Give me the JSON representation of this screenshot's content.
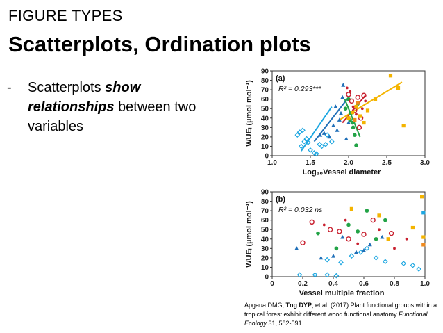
{
  "slide": {
    "kicker": "FIGURE TYPES",
    "title": "Scatterplots, Ordination plots",
    "bullet": {
      "dash": "-",
      "pre": "Scatterplots ",
      "em1": "show",
      "em2": "relationships",
      "post": " between two variables"
    },
    "caption": {
      "part1": "Apgaua DMG, ",
      "bold": "Tng DYP",
      "part2": ", et al. (2017) Plant functional groups within a tropical forest exhibit different wood functional anatomy ",
      "journal": "Functional Ecology",
      "part3": " 31, 582-591"
    }
  },
  "colors": {
    "cyan": "#1ea7e1",
    "blue": "#1f6fb8",
    "green": "#22a346",
    "red": "#c8202f",
    "yellow": "#f4b400",
    "orange": "#ef8a1f"
  },
  "chart_data": [
    {
      "type": "scatter",
      "panel_label": "(a)",
      "stat": "R² = 0.293***",
      "xlabel": "Log₁₀Vessel diameter",
      "ylabel": "WUEᵢ (µmol mol⁻¹)",
      "xlim": [
        1.0,
        3.0
      ],
      "ylim": [
        0,
        90
      ],
      "xticks": [
        "1.0",
        "1.5",
        "2.0",
        "2.5",
        "3.0"
      ],
      "yticks": [
        "0",
        "10",
        "20",
        "30",
        "40",
        "50",
        "60",
        "70",
        "80",
        "90"
      ],
      "points": [
        {
          "x": 1.33,
          "y": 22,
          "c": "cyan",
          "m": "diamond"
        },
        {
          "x": 1.36,
          "y": 25,
          "c": "cyan",
          "m": "diamond"
        },
        {
          "x": 1.4,
          "y": 27,
          "c": "cyan",
          "m": "diamond"
        },
        {
          "x": 1.38,
          "y": 10,
          "c": "cyan",
          "m": "diamond"
        },
        {
          "x": 1.42,
          "y": 15,
          "c": "cyan",
          "m": "diamond"
        },
        {
          "x": 1.45,
          "y": 18,
          "c": "cyan",
          "m": "diamond"
        },
        {
          "x": 1.47,
          "y": 14,
          "c": "cyan",
          "m": "diamond"
        },
        {
          "x": 1.5,
          "y": 6,
          "c": "cyan",
          "m": "diamond"
        },
        {
          "x": 1.55,
          "y": 3,
          "c": "cyan",
          "m": "diamond"
        },
        {
          "x": 1.58,
          "y": 2,
          "c": "cyan",
          "m": "diamond"
        },
        {
          "x": 1.62,
          "y": 12,
          "c": "cyan",
          "m": "diamond"
        },
        {
          "x": 1.65,
          "y": 10,
          "c": "cyan",
          "m": "diamond"
        },
        {
          "x": 1.7,
          "y": 12,
          "c": "cyan",
          "m": "diamond"
        },
        {
          "x": 1.72,
          "y": 22,
          "c": "cyan",
          "m": "diamond"
        },
        {
          "x": 1.78,
          "y": 15,
          "c": "cyan",
          "m": "diamond"
        },
        {
          "x": 1.63,
          "y": 22,
          "c": "blue",
          "m": "triangle"
        },
        {
          "x": 1.68,
          "y": 24,
          "c": "blue",
          "m": "triangle"
        },
        {
          "x": 1.75,
          "y": 20,
          "c": "blue",
          "m": "triangle"
        },
        {
          "x": 1.8,
          "y": 32,
          "c": "blue",
          "m": "triangle"
        },
        {
          "x": 1.85,
          "y": 27,
          "c": "blue",
          "m": "triangle"
        },
        {
          "x": 1.88,
          "y": 38,
          "c": "blue",
          "m": "triangle"
        },
        {
          "x": 1.83,
          "y": 52,
          "c": "blue",
          "m": "triangle"
        },
        {
          "x": 1.9,
          "y": 45,
          "c": "blue",
          "m": "triangle"
        },
        {
          "x": 1.92,
          "y": 62,
          "c": "blue",
          "m": "triangle"
        },
        {
          "x": 1.93,
          "y": 75,
          "c": "blue",
          "m": "triangle"
        },
        {
          "x": 1.97,
          "y": 18,
          "c": "blue",
          "m": "triangle"
        },
        {
          "x": 2.0,
          "y": 35,
          "c": "blue",
          "m": "triangle"
        },
        {
          "x": 1.96,
          "y": 50,
          "c": "green",
          "m": "circle"
        },
        {
          "x": 2.0,
          "y": 60,
          "c": "green",
          "m": "circle"
        },
        {
          "x": 2.03,
          "y": 45,
          "c": "green",
          "m": "circle"
        },
        {
          "x": 2.05,
          "y": 35,
          "c": "green",
          "m": "circle"
        },
        {
          "x": 2.08,
          "y": 22,
          "c": "green",
          "m": "circle"
        },
        {
          "x": 2.1,
          "y": 11,
          "c": "green",
          "m": "circle"
        },
        {
          "x": 2.02,
          "y": 38,
          "c": "green",
          "m": "circle"
        },
        {
          "x": 2.12,
          "y": 55,
          "c": "green",
          "m": "circle"
        },
        {
          "x": 2.06,
          "y": 30,
          "c": "green",
          "m": "circle"
        },
        {
          "x": 2.0,
          "y": 65,
          "c": "red",
          "m": "ring"
        },
        {
          "x": 2.04,
          "y": 58,
          "c": "red",
          "m": "ring"
        },
        {
          "x": 2.08,
          "y": 48,
          "c": "red",
          "m": "ring"
        },
        {
          "x": 2.12,
          "y": 62,
          "c": "red",
          "m": "ring"
        },
        {
          "x": 2.16,
          "y": 40,
          "c": "red",
          "m": "ring"
        },
        {
          "x": 2.2,
          "y": 64,
          "c": "red",
          "m": "ring"
        },
        {
          "x": 2.14,
          "y": 30,
          "c": "red",
          "m": "ring"
        },
        {
          "x": 1.98,
          "y": 72,
          "c": "red",
          "m": "dot"
        },
        {
          "x": 2.02,
          "y": 68,
          "c": "red",
          "m": "dot"
        },
        {
          "x": 2.06,
          "y": 52,
          "c": "red",
          "m": "dot"
        },
        {
          "x": 2.1,
          "y": 44,
          "c": "red",
          "m": "dot"
        },
        {
          "x": 2.18,
          "y": 50,
          "c": "red",
          "m": "dot"
        },
        {
          "x": 2.22,
          "y": 58,
          "c": "red",
          "m": "dot"
        },
        {
          "x": 2.0,
          "y": 40,
          "c": "yellow",
          "m": "square"
        },
        {
          "x": 2.05,
          "y": 46,
          "c": "yellow",
          "m": "square"
        },
        {
          "x": 2.1,
          "y": 52,
          "c": "yellow",
          "m": "square"
        },
        {
          "x": 2.15,
          "y": 42,
          "c": "yellow",
          "m": "square"
        },
        {
          "x": 2.2,
          "y": 35,
          "c": "yellow",
          "m": "square"
        },
        {
          "x": 2.25,
          "y": 48,
          "c": "yellow",
          "m": "square"
        },
        {
          "x": 2.35,
          "y": 60,
          "c": "yellow",
          "m": "square"
        },
        {
          "x": 2.55,
          "y": 85,
          "c": "yellow",
          "m": "square"
        },
        {
          "x": 2.65,
          "y": 72,
          "c": "yellow",
          "m": "square"
        },
        {
          "x": 2.72,
          "y": 32,
          "c": "yellow",
          "m": "square"
        },
        {
          "x": 2.08,
          "y": 38,
          "c": "orange",
          "m": "square"
        },
        {
          "x": 2.12,
          "y": 56,
          "c": "orange",
          "m": "square"
        }
      ],
      "fits": [
        {
          "c": "cyan",
          "x": [
            1.38,
            1.78
          ],
          "y": [
            5,
            52
          ]
        },
        {
          "c": "blue",
          "x": [
            1.55,
            2.0
          ],
          "y": [
            15,
            62
          ]
        },
        {
          "c": "green",
          "x": [
            1.95,
            2.15
          ],
          "y": [
            60,
            20
          ]
        },
        {
          "c": "red",
          "x": [
            1.92,
            2.22
          ],
          "y": [
            35,
            64
          ]
        },
        {
          "c": "yellow",
          "x": [
            1.88,
            2.7
          ],
          "y": [
            38,
            78
          ]
        }
      ]
    },
    {
      "type": "scatter",
      "panel_label": "(b)",
      "stat": "R² = 0.032 ns",
      "xlabel": "Vessel multiple fraction",
      "ylabel": "WUEᵢ (µmol mol⁻¹)",
      "xlim": [
        0,
        1.0
      ],
      "ylim": [
        0,
        90
      ],
      "xticks": [
        "0",
        "0.2",
        "0.4",
        "0.6",
        "0.8",
        "1.0"
      ],
      "yticks": [
        "0",
        "10",
        "20",
        "30",
        "40",
        "50",
        "60",
        "70",
        "80",
        "90"
      ],
      "points": [
        {
          "x": 0.18,
          "y": 2,
          "c": "cyan",
          "m": "diamond"
        },
        {
          "x": 0.28,
          "y": 2,
          "c": "cyan",
          "m": "diamond"
        },
        {
          "x": 0.36,
          "y": 2,
          "c": "cyan",
          "m": "diamond"
        },
        {
          "x": 0.42,
          "y": 1,
          "c": "cyan",
          "m": "diamond"
        },
        {
          "x": 0.36,
          "y": 18,
          "c": "cyan",
          "m": "diamond"
        },
        {
          "x": 0.45,
          "y": 15,
          "c": "cyan",
          "m": "diamond"
        },
        {
          "x": 0.52,
          "y": 22,
          "c": "cyan",
          "m": "diamond"
        },
        {
          "x": 0.58,
          "y": 26,
          "c": "cyan",
          "m": "diamond"
        },
        {
          "x": 0.62,
          "y": 30,
          "c": "cyan",
          "m": "diamond"
        },
        {
          "x": 0.68,
          "y": 20,
          "c": "cyan",
          "m": "diamond"
        },
        {
          "x": 0.74,
          "y": 16,
          "c": "cyan",
          "m": "diamond"
        },
        {
          "x": 0.86,
          "y": 14,
          "c": "cyan",
          "m": "diamond"
        },
        {
          "x": 0.92,
          "y": 12,
          "c": "cyan",
          "m": "diamond"
        },
        {
          "x": 0.96,
          "y": 8,
          "c": "cyan",
          "m": "diamond"
        },
        {
          "x": 0.32,
          "y": 20,
          "c": "blue",
          "m": "triangle"
        },
        {
          "x": 0.4,
          "y": 22,
          "c": "blue",
          "m": "triangle"
        },
        {
          "x": 0.46,
          "y": 42,
          "c": "blue",
          "m": "triangle"
        },
        {
          "x": 0.55,
          "y": 26,
          "c": "blue",
          "m": "triangle"
        },
        {
          "x": 0.64,
          "y": 34,
          "c": "blue",
          "m": "triangle"
        },
        {
          "x": 0.72,
          "y": 42,
          "c": "blue",
          "m": "triangle"
        },
        {
          "x": 0.6,
          "y": 28,
          "c": "blue",
          "m": "triangle"
        },
        {
          "x": 0.16,
          "y": 30,
          "c": "blue",
          "m": "triangle"
        },
        {
          "x": 0.3,
          "y": 46,
          "c": "green",
          "m": "circle"
        },
        {
          "x": 0.42,
          "y": 30,
          "c": "green",
          "m": "circle"
        },
        {
          "x": 0.5,
          "y": 55,
          "c": "green",
          "m": "circle"
        },
        {
          "x": 0.56,
          "y": 48,
          "c": "green",
          "m": "circle"
        },
        {
          "x": 0.62,
          "y": 70,
          "c": "green",
          "m": "circle"
        },
        {
          "x": 0.68,
          "y": 40,
          "c": "green",
          "m": "circle"
        },
        {
          "x": 0.74,
          "y": 60,
          "c": "green",
          "m": "circle"
        },
        {
          "x": 0.2,
          "y": 36,
          "c": "red",
          "m": "ring"
        },
        {
          "x": 0.26,
          "y": 58,
          "c": "red",
          "m": "ring"
        },
        {
          "x": 0.38,
          "y": 50,
          "c": "red",
          "m": "ring"
        },
        {
          "x": 0.44,
          "y": 48,
          "c": "red",
          "m": "ring"
        },
        {
          "x": 0.5,
          "y": 40,
          "c": "red",
          "m": "ring"
        },
        {
          "x": 0.6,
          "y": 45,
          "c": "red",
          "m": "ring"
        },
        {
          "x": 0.66,
          "y": 60,
          "c": "red",
          "m": "ring"
        },
        {
          "x": 0.78,
          "y": 46,
          "c": "red",
          "m": "ring"
        },
        {
          "x": 0.34,
          "y": 55,
          "c": "red",
          "m": "dot"
        },
        {
          "x": 0.48,
          "y": 60,
          "c": "red",
          "m": "dot"
        },
        {
          "x": 0.56,
          "y": 35,
          "c": "red",
          "m": "dot"
        },
        {
          "x": 0.7,
          "y": 50,
          "c": "red",
          "m": "dot"
        },
        {
          "x": 0.8,
          "y": 30,
          "c": "red",
          "m": "dot"
        },
        {
          "x": 0.88,
          "y": 40,
          "c": "red",
          "m": "dot"
        },
        {
          "x": 0.52,
          "y": 72,
          "c": "yellow",
          "m": "square"
        },
        {
          "x": 0.7,
          "y": 65,
          "c": "yellow",
          "m": "square"
        },
        {
          "x": 0.76,
          "y": 40,
          "c": "yellow",
          "m": "square"
        },
        {
          "x": 0.92,
          "y": 52,
          "c": "yellow",
          "m": "square"
        },
        {
          "x": 0.98,
          "y": 85,
          "c": "yellow",
          "m": "square"
        },
        {
          "x": 0.99,
          "y": 42,
          "c": "yellow",
          "m": "square"
        },
        {
          "x": 0.99,
          "y": 34,
          "c": "orange",
          "m": "square"
        },
        {
          "x": 0.99,
          "y": 68,
          "c": "cyan",
          "m": "square"
        }
      ],
      "fits": []
    }
  ]
}
